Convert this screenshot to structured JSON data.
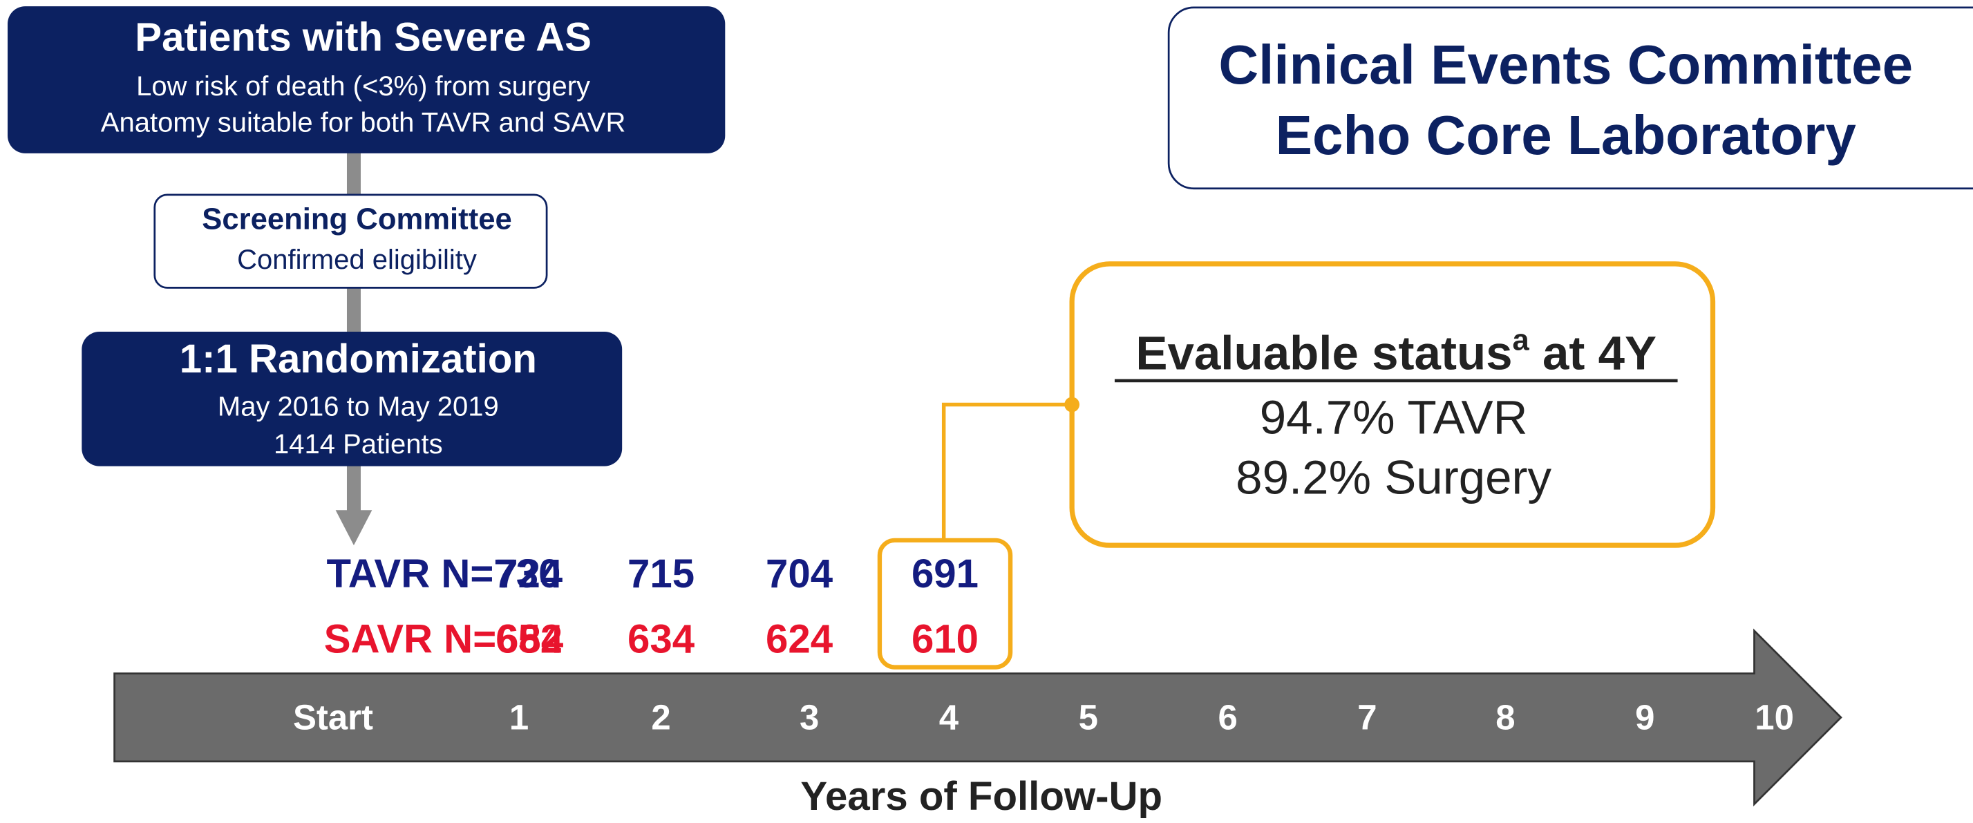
{
  "patients": {
    "title": "Patients with Severe AS",
    "lines": [
      "Low risk of death (<3%) from surgery",
      "Anatomy suitable for both TAVR and SAVR"
    ]
  },
  "screening": {
    "title": "Screening Committee",
    "subtitle": "Confirmed eligibility"
  },
  "randomization": {
    "title": "1:1 Randomization",
    "lines": [
      "May 2016 to May 2019",
      "1414 Patients"
    ]
  },
  "committee": {
    "lines": [
      "Clinical Events Committee",
      "Echo Core Laboratory"
    ]
  },
  "evaluable": {
    "title": "Evaluable status",
    "superscript": "a",
    "title_suffix": " at 4Y",
    "lines": [
      "94.7% TAVR",
      "89.2% Surgery"
    ]
  },
  "rows": [
    {
      "label": "TAVR N=730",
      "counts": [
        724,
        715,
        704,
        691
      ]
    },
    {
      "label": "SAVR N=684",
      "counts": [
        652,
        634,
        624,
        610
      ]
    }
  ],
  "timeline": {
    "ticks": [
      "Start",
      "1",
      "2",
      "3",
      "4",
      "5",
      "6",
      "7",
      "8",
      "9",
      "10"
    ],
    "axis_label": "Years of Follow-Up"
  }
}
